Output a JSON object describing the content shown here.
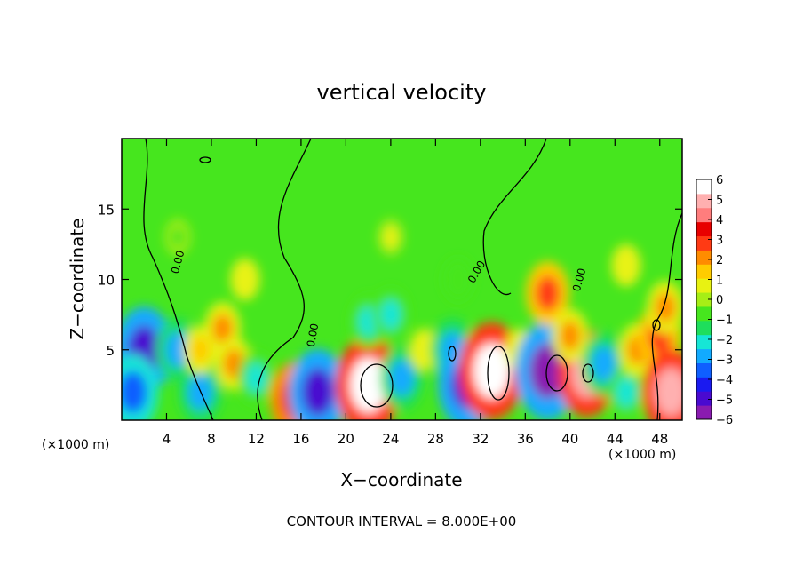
{
  "chart_data": {
    "type": "heatmap",
    "title": "vertical velocity",
    "xlabel": "X−coordinate",
    "ylabel": "Z−coordinate",
    "x_unit_left": "(×1000 m)",
    "x_unit_right": "(×1000 m)",
    "footer": "CONTOUR INTERVAL = 8.000E+00",
    "contour_label": "0.00",
    "xlim": [
      0,
      50
    ],
    "ylim": [
      0,
      20
    ],
    "x_ticks": [
      4,
      8,
      12,
      16,
      20,
      24,
      28,
      32,
      36,
      40,
      44,
      48
    ],
    "y_ticks": [
      5,
      10,
      15
    ],
    "colorbar": {
      "range": [
        -6,
        6
      ],
      "labels": [
        "6",
        "5",
        "4",
        "3",
        "2",
        "1",
        "0",
        "−1",
        "−2",
        "−3",
        "−4",
        "−5",
        "−6"
      ],
      "colors": [
        "#8a1bb0",
        "#4a0ad0",
        "#1a1af0",
        "#0f5fff",
        "#12aaff",
        "#16e6d6",
        "#1ede5c",
        "#46e61e",
        "#a6ee16",
        "#e8f212",
        "#ffcc00",
        "#ff8c00",
        "#ff3a14",
        "#e80000",
        "#ff7d7d",
        "#ffb0b0",
        "#ffffff"
      ]
    },
    "cells": [
      {
        "x": 2,
        "z": 5,
        "v": -5
      },
      {
        "x": 1,
        "z": 2,
        "v": -4
      },
      {
        "x": 5,
        "z": 5,
        "v": -3
      },
      {
        "x": 7,
        "z": 2,
        "v": -3
      },
      {
        "x": 9,
        "z": 6.5,
        "v": 2
      },
      {
        "x": 10,
        "z": 4,
        "v": 2
      },
      {
        "x": 7,
        "z": 5,
        "v": 1.5
      },
      {
        "x": 12,
        "z": 3,
        "v": -2
      },
      {
        "x": 15.5,
        "z": 1.5,
        "v": 4
      },
      {
        "x": 17.5,
        "z": 2,
        "v": -5
      },
      {
        "x": 22,
        "z": 2.5,
        "v": 6
      },
      {
        "x": 25,
        "z": 3,
        "v": -3
      },
      {
        "x": 22,
        "z": 7,
        "v": -2
      },
      {
        "x": 24,
        "z": 7.5,
        "v": -2
      },
      {
        "x": 27,
        "z": 5,
        "v": 1
      },
      {
        "x": 29.5,
        "z": 5,
        "v": -3
      },
      {
        "x": 30.8,
        "z": 2.5,
        "v": -5
      },
      {
        "x": 33,
        "z": 3.5,
        "v": 6
      },
      {
        "x": 35.5,
        "z": 5,
        "v": 1
      },
      {
        "x": 38,
        "z": 3.5,
        "v": -6
      },
      {
        "x": 41.5,
        "z": 3.3,
        "v": 5
      },
      {
        "x": 38,
        "z": 9,
        "v": 3
      },
      {
        "x": 40,
        "z": 6,
        "v": 2
      },
      {
        "x": 43,
        "z": 4,
        "v": -3
      },
      {
        "x": 45,
        "z": 2,
        "v": -2
      },
      {
        "x": 46,
        "z": 5,
        "v": 2
      },
      {
        "x": 48,
        "z": 6,
        "v": 3
      },
      {
        "x": 49,
        "z": 2,
        "v": 5
      },
      {
        "x": 48.5,
        "z": 8,
        "v": 2
      },
      {
        "x": 11,
        "z": 10,
        "v": 1
      },
      {
        "x": 30,
        "z": 10,
        "v": -1
      },
      {
        "x": 45,
        "z": 11,
        "v": 1
      },
      {
        "x": 5,
        "z": 13,
        "v": -0.5
      },
      {
        "x": 24,
        "z": 13,
        "v": 0.5
      }
    ]
  }
}
